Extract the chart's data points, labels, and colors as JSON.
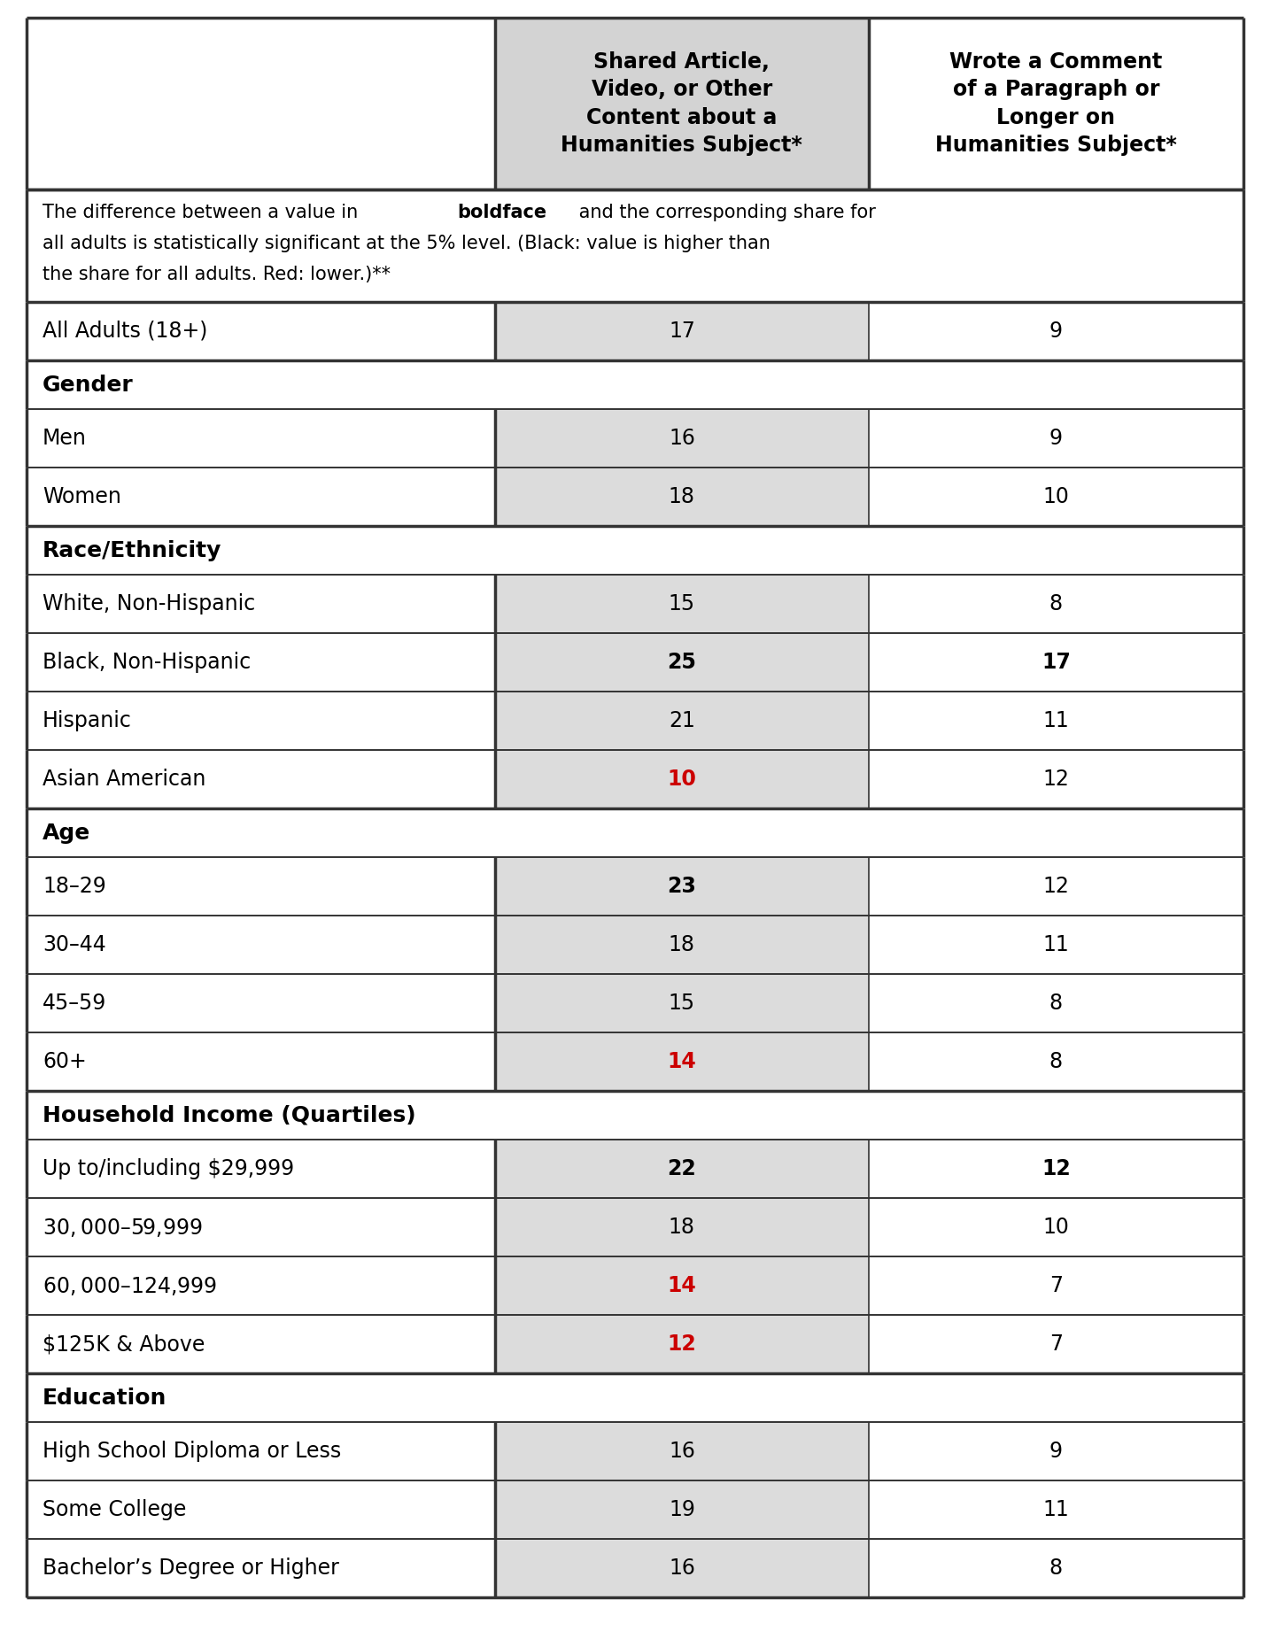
{
  "col1_header": "Shared Article,\nVideo, or Other\nContent about a\nHumanities Subject*",
  "col2_header": "Wrote a Comment\nof a Paragraph or\nLonger on\nHumanities Subject*",
  "note_lines": [
    [
      [
        "The difference between a value in ",
        false
      ],
      [
        "boldface",
        true
      ],
      [
        " and the corresponding share for",
        false
      ]
    ],
    [
      [
        "all adults is statistically significant at the 5% level. (Black: value is higher than",
        false
      ]
    ],
    [
      [
        "the share for all adults. Red: lower.)**",
        false
      ]
    ]
  ],
  "rows": [
    {
      "label": "All Adults (18+)",
      "v1": "17",
      "v2": "9",
      "v1_bold": false,
      "v1_red": false,
      "v2_bold": false,
      "v2_red": false,
      "is_header": false,
      "is_all_adults": true
    },
    {
      "label": "Gender",
      "v1": "",
      "v2": "",
      "v1_bold": false,
      "v1_red": false,
      "v2_bold": false,
      "v2_red": false,
      "is_header": true,
      "is_all_adults": false
    },
    {
      "label": "Men",
      "v1": "16",
      "v2": "9",
      "v1_bold": false,
      "v1_red": false,
      "v2_bold": false,
      "v2_red": false,
      "is_header": false,
      "is_all_adults": false
    },
    {
      "label": "Women",
      "v1": "18",
      "v2": "10",
      "v1_bold": false,
      "v1_red": false,
      "v2_bold": false,
      "v2_red": false,
      "is_header": false,
      "is_all_adults": false
    },
    {
      "label": "Race/Ethnicity",
      "v1": "",
      "v2": "",
      "v1_bold": false,
      "v1_red": false,
      "v2_bold": false,
      "v2_red": false,
      "is_header": true,
      "is_all_adults": false
    },
    {
      "label": "White, Non-Hispanic",
      "v1": "15",
      "v2": "8",
      "v1_bold": false,
      "v1_red": false,
      "v2_bold": false,
      "v2_red": false,
      "is_header": false,
      "is_all_adults": false
    },
    {
      "label": "Black, Non-Hispanic",
      "v1": "25",
      "v2": "17",
      "v1_bold": true,
      "v1_red": false,
      "v2_bold": true,
      "v2_red": false,
      "is_header": false,
      "is_all_adults": false
    },
    {
      "label": "Hispanic",
      "v1": "21",
      "v2": "11",
      "v1_bold": false,
      "v1_red": false,
      "v2_bold": false,
      "v2_red": false,
      "is_header": false,
      "is_all_adults": false
    },
    {
      "label": "Asian American",
      "v1": "10",
      "v2": "12",
      "v1_bold": false,
      "v1_red": true,
      "v2_bold": false,
      "v2_red": false,
      "is_header": false,
      "is_all_adults": false
    },
    {
      "label": "Age",
      "v1": "",
      "v2": "",
      "v1_bold": false,
      "v1_red": false,
      "v2_bold": false,
      "v2_red": false,
      "is_header": true,
      "is_all_adults": false
    },
    {
      "label": "18–29",
      "v1": "23",
      "v2": "12",
      "v1_bold": true,
      "v1_red": false,
      "v2_bold": false,
      "v2_red": false,
      "is_header": false,
      "is_all_adults": false
    },
    {
      "label": "30–44",
      "v1": "18",
      "v2": "11",
      "v1_bold": false,
      "v1_red": false,
      "v2_bold": false,
      "v2_red": false,
      "is_header": false,
      "is_all_adults": false
    },
    {
      "label": "45–59",
      "v1": "15",
      "v2": "8",
      "v1_bold": false,
      "v1_red": false,
      "v2_bold": false,
      "v2_red": false,
      "is_header": false,
      "is_all_adults": false
    },
    {
      "label": "60+",
      "v1": "14",
      "v2": "8",
      "v1_bold": false,
      "v1_red": true,
      "v2_bold": false,
      "v2_red": false,
      "is_header": false,
      "is_all_adults": false
    },
    {
      "label": "Household Income (Quartiles)",
      "v1": "",
      "v2": "",
      "v1_bold": false,
      "v1_red": false,
      "v2_bold": false,
      "v2_red": false,
      "is_header": true,
      "is_all_adults": false
    },
    {
      "label": "Up to/including $29,999",
      "v1": "22",
      "v2": "12",
      "v1_bold": true,
      "v1_red": false,
      "v2_bold": true,
      "v2_red": false,
      "is_header": false,
      "is_all_adults": false
    },
    {
      "label": "$30,000–$59,999",
      "v1": "18",
      "v2": "10",
      "v1_bold": false,
      "v1_red": false,
      "v2_bold": false,
      "v2_red": false,
      "is_header": false,
      "is_all_adults": false
    },
    {
      "label": "$60,000–$124,999",
      "v1": "14",
      "v2": "7",
      "v1_bold": false,
      "v1_red": true,
      "v2_bold": false,
      "v2_red": false,
      "is_header": false,
      "is_all_adults": false
    },
    {
      "label": "$125K & Above",
      "v1": "12",
      "v2": "7",
      "v1_bold": false,
      "v1_red": true,
      "v2_bold": false,
      "v2_red": false,
      "is_header": false,
      "is_all_adults": false
    },
    {
      "label": "Education",
      "v1": "",
      "v2": "",
      "v1_bold": false,
      "v1_red": false,
      "v2_bold": false,
      "v2_red": false,
      "is_header": true,
      "is_all_adults": false
    },
    {
      "label": "High School Diploma or Less",
      "v1": "16",
      "v2": "9",
      "v1_bold": false,
      "v1_red": false,
      "v2_bold": false,
      "v2_red": false,
      "is_header": false,
      "is_all_adults": false
    },
    {
      "label": "Some College",
      "v1": "19",
      "v2": "11",
      "v1_bold": false,
      "v1_red": false,
      "v2_bold": false,
      "v2_red": false,
      "is_header": false,
      "is_all_adults": false
    },
    {
      "label": "Bachelor’s Degree or Higher",
      "v1": "16",
      "v2": "8",
      "v1_bold": false,
      "v1_red": false,
      "v2_bold": false,
      "v2_red": false,
      "is_header": false,
      "is_all_adults": false
    }
  ],
  "col_header_bg": "#d3d3d3",
  "data_col1_bg": "#dcdcdc",
  "border_color": "#333333",
  "text_color": "#000000",
  "red_color": "#cc0000",
  "font_size": 17,
  "header_font_size": 17,
  "note_font_size": 15,
  "lw_thick": 2.5,
  "lw_thin": 1.2
}
